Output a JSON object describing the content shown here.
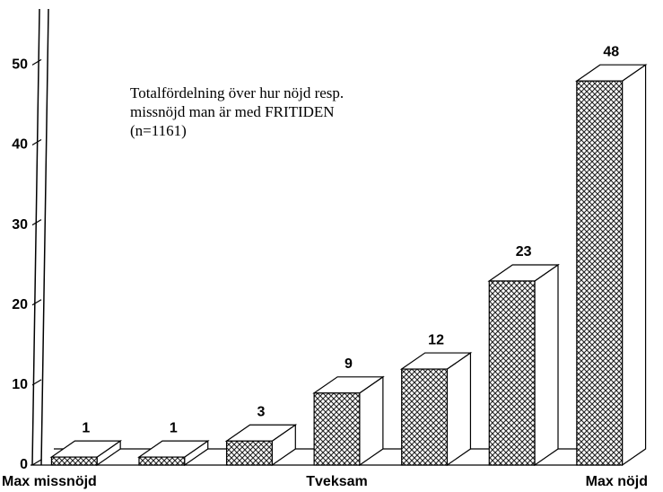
{
  "chart_data": {
    "type": "bar3d",
    "title": [
      "Totalfördelning över hur nöjd resp.",
      "missnöjd man är med FRITIDEN"
    ],
    "subtitle": "(n=1161)",
    "categories": [
      "Max missnöjd",
      null,
      null,
      "Tveksam",
      null,
      null,
      "Max nöjd"
    ],
    "values": [
      1,
      1,
      3,
      9,
      12,
      23,
      48
    ],
    "color": "#ffffff",
    "ylim": [
      0,
      57
    ],
    "yticks": [
      0,
      10,
      20,
      30,
      40,
      50
    ],
    "grid": false
  }
}
